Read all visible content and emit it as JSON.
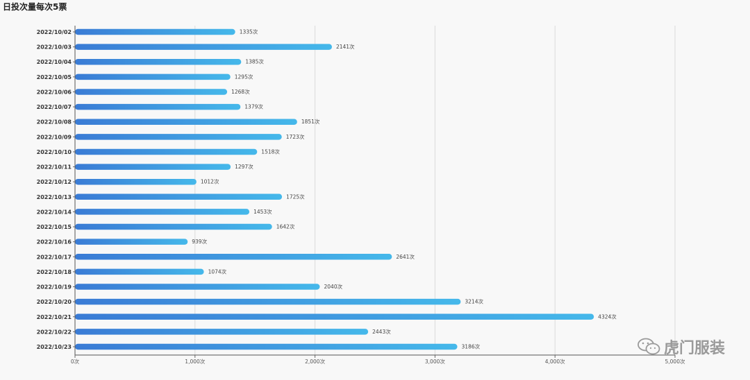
{
  "chart_data": {
    "type": "bar",
    "orientation": "horizontal",
    "title": "日投次量每次5票",
    "categories": [
      "2022/10/02",
      "2022/10/03",
      "2022/10/04",
      "2022/10/05",
      "2022/10/06",
      "2022/10/07",
      "2022/10/08",
      "2022/10/09",
      "2022/10/10",
      "2022/10/11",
      "2022/10/12",
      "2022/10/13",
      "2022/10/14",
      "2022/10/15",
      "2022/10/16",
      "2022/10/17",
      "2022/10/18",
      "2022/10/19",
      "2022/10/20",
      "2022/10/21",
      "2022/10/22",
      "2022/10/23"
    ],
    "values": [
      1335,
      2141,
      1385,
      1295,
      1268,
      1379,
      1851,
      1723,
      1518,
      1297,
      1012,
      1725,
      1453,
      1642,
      939,
      2641,
      1074,
      2040,
      3214,
      4324,
      2443,
      3186
    ],
    "value_suffix": "次",
    "xlim": [
      0,
      5000
    ],
    "xticks": [
      0,
      1000,
      2000,
      3000,
      4000,
      5000
    ],
    "xtick_labels": [
      "0次",
      "1,000次",
      "2,000次",
      "3,000次",
      "4,000次",
      "5,000次"
    ],
    "grid": true,
    "bar_gradient": [
      "#3a7bd5",
      "#45b8ea"
    ]
  },
  "watermark": {
    "text": "虎门服装",
    "icon": "wechat-icon"
  }
}
